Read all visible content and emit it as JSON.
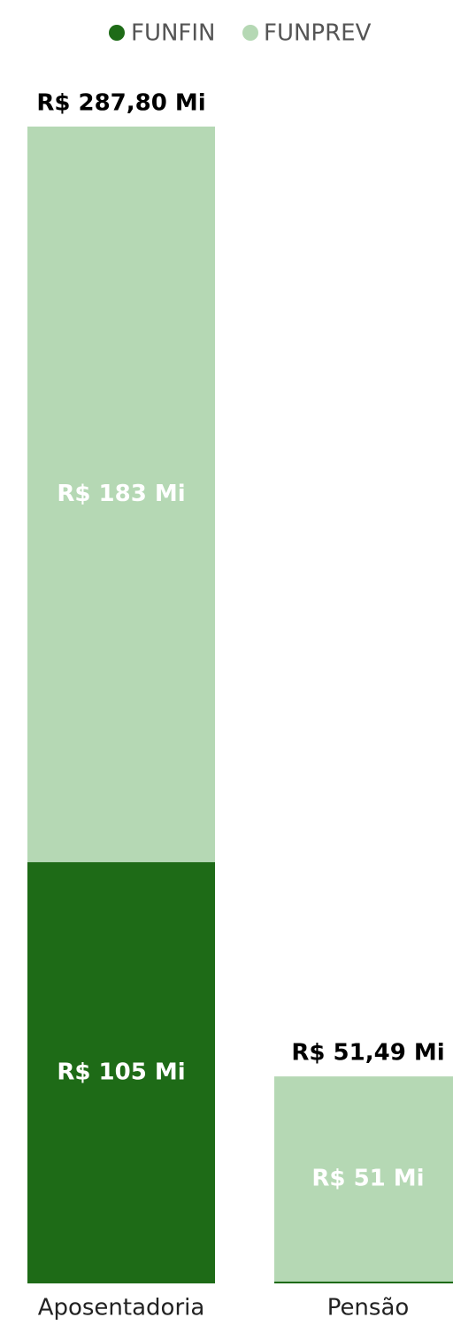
{
  "chart_data": {
    "type": "stacked_bar",
    "categories": [
      "Aposentadoria",
      "Pensão"
    ],
    "series": [
      {
        "name": "FUNFIN",
        "color": "#1e6b17",
        "values": [
          104.8,
          0.49
        ],
        "value_labels": [
          "R$ 105 Mi",
          null
        ]
      },
      {
        "name": "FUNPREV",
        "color": "#b5d8b4",
        "values": [
          183,
          51
        ],
        "value_labels": [
          "R$ 183 Mi",
          "R$ 51 Mi"
        ]
      }
    ],
    "totals": [
      287.8,
      51.49
    ],
    "total_labels": [
      "R$ 287,80 Mi",
      "R$ 51,49 Mi"
    ],
    "legend": "top"
  }
}
